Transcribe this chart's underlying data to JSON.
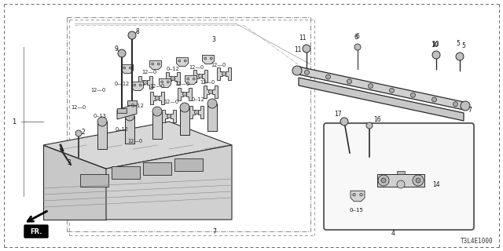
{
  "bg_color": "#ffffff",
  "part_number": "T3L4E1000",
  "line_color": "#2a2a2a",
  "light_gray": "#c8c8c8",
  "mid_gray": "#888888",
  "dark_gray": "#444444"
}
